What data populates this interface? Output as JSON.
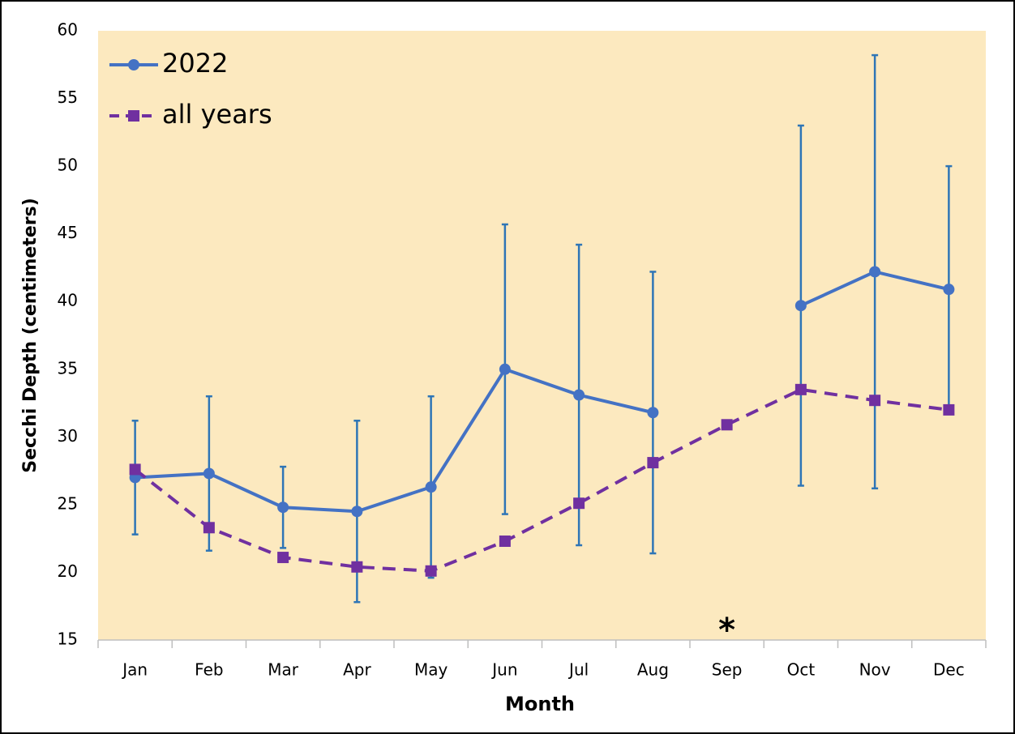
{
  "chart_data": {
    "type": "line",
    "x_label": "Month",
    "y_label": "Secchi Depth (centimeters)",
    "categories": [
      "Jan",
      "Feb",
      "Mar",
      "Apr",
      "May",
      "Jun",
      "Jul",
      "Aug",
      "Sep",
      "Oct",
      "Nov",
      "Dec"
    ],
    "series": [
      {
        "name": "2022",
        "color": "#4472c4",
        "marker": "circle",
        "dash": false,
        "error_color": "#2e75b6",
        "values": [
          27.0,
          27.3,
          24.8,
          24.5,
          26.3,
          35.0,
          33.1,
          31.8,
          null,
          39.7,
          42.2,
          40.9
        ],
        "errors": [
          4.2,
          5.7,
          3.0,
          6.7,
          6.7,
          10.7,
          11.1,
          10.4,
          null,
          13.3,
          16.0,
          9.1
        ]
      },
      {
        "name": "all years",
        "color": "#7030a0",
        "marker": "square",
        "dash": true,
        "values": [
          27.6,
          23.3,
          21.1,
          20.4,
          20.1,
          22.3,
          25.1,
          28.1,
          30.9,
          33.5,
          32.7,
          32.0
        ]
      }
    ],
    "annotations": [
      {
        "text": "*",
        "category": "Sep"
      }
    ],
    "ylim": [
      15,
      60
    ],
    "yticks": [
      15,
      20,
      25,
      30,
      35,
      40,
      45,
      50,
      55,
      60
    ],
    "background": "#fce9bf",
    "legend": "top-left"
  }
}
